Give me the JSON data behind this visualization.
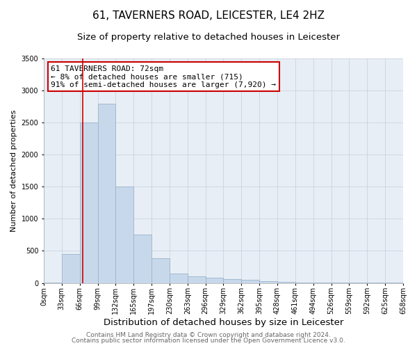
{
  "title1": "61, TAVERNERS ROAD, LEICESTER, LE4 2HZ",
  "title2": "Size of property relative to detached houses in Leicester",
  "xlabel": "Distribution of detached houses by size in Leicester",
  "ylabel": "Number of detached properties",
  "bin_labels": [
    "0sqm",
    "33sqm",
    "66sqm",
    "99sqm",
    "132sqm",
    "165sqm",
    "197sqm",
    "230sqm",
    "263sqm",
    "296sqm",
    "329sqm",
    "362sqm",
    "395sqm",
    "428sqm",
    "461sqm",
    "494sqm",
    "526sqm",
    "559sqm",
    "592sqm",
    "625sqm",
    "658sqm"
  ],
  "bar_heights": [
    10,
    450,
    2500,
    2800,
    1500,
    750,
    380,
    150,
    100,
    80,
    60,
    50,
    30,
    20,
    10,
    5,
    5,
    3,
    2,
    1
  ],
  "bar_color": "#c8d8eb",
  "bar_edgecolor": "#9ab4cc",
  "red_line_x": 2.18,
  "annotation_text": "61 TAVERNERS ROAD: 72sqm\n← 8% of detached houses are smaller (715)\n91% of semi-detached houses are larger (7,920) →",
  "annotation_box_color": "white",
  "annotation_box_edgecolor": "#cc0000",
  "red_line_color": "#cc0000",
  "ylim": [
    0,
    3500
  ],
  "yticks": [
    0,
    500,
    1000,
    1500,
    2000,
    2500,
    3000,
    3500
  ],
  "footer1": "Contains HM Land Registry data © Crown copyright and database right 2024.",
  "footer2": "Contains public sector information licensed under the Open Government Licence v3.0.",
  "bg_color": "#ffffff",
  "plot_bg_color": "#e8eef5",
  "grid_color": "#c8d4e0",
  "title1_fontsize": 11,
  "title2_fontsize": 9.5,
  "xlabel_fontsize": 9.5,
  "ylabel_fontsize": 8,
  "tick_fontsize": 7,
  "annotation_fontsize": 8,
  "footer_fontsize": 6.5
}
